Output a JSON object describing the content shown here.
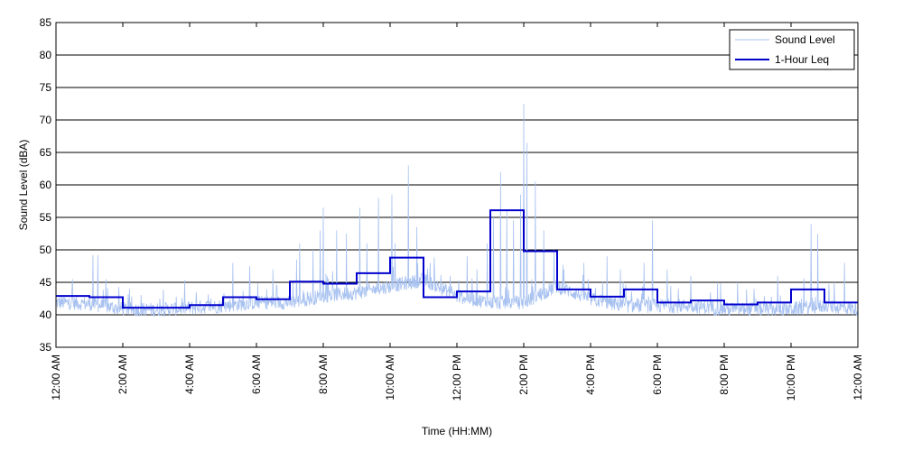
{
  "chart_data": {
    "type": "line",
    "title": "",
    "xlabel": "Time (HH:MM)",
    "ylabel": "Sound Level (dBA)",
    "xlim": [
      0,
      24
    ],
    "ylim": [
      35,
      85
    ],
    "y_ticks": [
      35,
      40,
      45,
      50,
      55,
      60,
      65,
      70,
      75,
      80,
      85
    ],
    "x_ticks": [
      0,
      2,
      4,
      6,
      8,
      10,
      12,
      14,
      16,
      18,
      20,
      22,
      24
    ],
    "x_tick_labels": [
      "12:00 AM",
      "2:00 AM",
      "4:00 AM",
      "6:00 AM",
      "8:00 AM",
      "10:00 AM",
      "12:00 PM",
      "2:00 PM",
      "4:00 PM",
      "6:00 PM",
      "8:00 PM",
      "10:00 PM",
      "12:00 AM"
    ],
    "grid": "horizontal",
    "legend": "top-right",
    "colors": {
      "sound_level": "#a7c1f0",
      "leq": "#0000cd"
    },
    "series": [
      {
        "name": "Sound Level",
        "style": "thin-light",
        "baseline": [
          42.0,
          41.8,
          41.0,
          40.9,
          41.2,
          41.5,
          42.0,
          42.0,
          43.0,
          43.5,
          44.5,
          45.5,
          43.0,
          42.0,
          42.0,
          44.5,
          42.5,
          41.5,
          41.5,
          41.5,
          41.0,
          41.0,
          41.0,
          41.5,
          41.0
        ],
        "spikes": [
          [
            0.5,
            45.5
          ],
          [
            1.1,
            49.2
          ],
          [
            1.25,
            49.2
          ],
          [
            1.5,
            45.5
          ],
          [
            3.1,
            42.5
          ],
          [
            3.6,
            42.8
          ],
          [
            4.2,
            43.5
          ],
          [
            5.3,
            48.0
          ],
          [
            5.8,
            47.5
          ],
          [
            6.5,
            47.0
          ],
          [
            7.2,
            48.5
          ],
          [
            7.3,
            51.0
          ],
          [
            7.7,
            50.0
          ],
          [
            7.9,
            53.0
          ],
          [
            8.0,
            56.5
          ],
          [
            8.4,
            53.0
          ],
          [
            8.7,
            52.5
          ],
          [
            9.1,
            56.5
          ],
          [
            9.3,
            51.0
          ],
          [
            9.65,
            58.0
          ],
          [
            10.05,
            58.5
          ],
          [
            10.15,
            51.0
          ],
          [
            10.55,
            63.0
          ],
          [
            10.8,
            53.5
          ],
          [
            11.2,
            48.0
          ],
          [
            11.8,
            46.0
          ],
          [
            12.3,
            49.0
          ],
          [
            12.6,
            47.0
          ],
          [
            12.9,
            51.0
          ],
          [
            13.1,
            55.0
          ],
          [
            13.3,
            62.0
          ],
          [
            13.5,
            56.0
          ],
          [
            13.7,
            54.5
          ],
          [
            13.9,
            58.5
          ],
          [
            14.0,
            72.5
          ],
          [
            14.1,
            66.5
          ],
          [
            14.35,
            60.5
          ],
          [
            14.6,
            53.0
          ],
          [
            14.9,
            50.0
          ],
          [
            15.2,
            47.0
          ],
          [
            15.8,
            48.0
          ],
          [
            16.5,
            49.0
          ],
          [
            16.9,
            47.0
          ],
          [
            17.6,
            48.0
          ],
          [
            17.85,
            54.5
          ],
          [
            18.3,
            47.0
          ],
          [
            19.0,
            46.0
          ],
          [
            19.8,
            45.0
          ],
          [
            20.4,
            45.0
          ],
          [
            20.9,
            44.0
          ],
          [
            21.6,
            46.0
          ],
          [
            22.6,
            54.0
          ],
          [
            22.8,
            52.5
          ],
          [
            23.3,
            45.0
          ],
          [
            23.6,
            48.0
          ]
        ]
      },
      {
        "name": "1-Hour Leq",
        "style": "step",
        "hours": [
          0,
          1,
          2,
          3,
          4,
          5,
          6,
          7,
          8,
          9,
          10,
          11,
          12,
          13,
          14,
          15,
          16,
          17,
          18,
          19,
          20,
          21,
          22,
          23
        ],
        "values": [
          42.9,
          42.7,
          41.1,
          41.1,
          41.5,
          42.7,
          42.4,
          45.1,
          44.8,
          46.4,
          48.8,
          42.7,
          43.6,
          56.1,
          49.8,
          43.9,
          42.8,
          43.9,
          41.9,
          42.2,
          41.6,
          41.9,
          43.9,
          41.9
        ]
      }
    ]
  }
}
